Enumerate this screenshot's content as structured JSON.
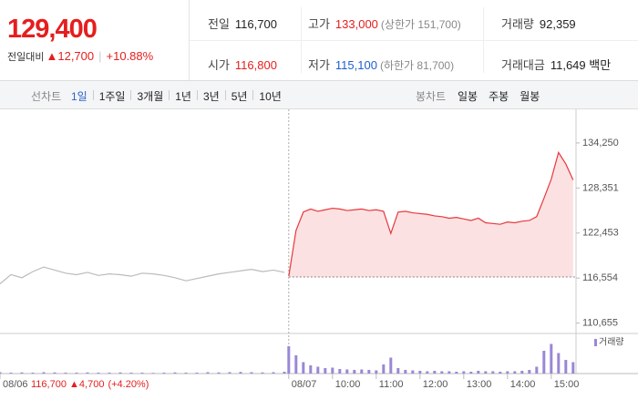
{
  "header": {
    "price": "129,400",
    "change_label": "전일대비",
    "change": "12,700",
    "change_pct": "+10.88%"
  },
  "stats": [
    {
      "label": "전일",
      "value": "116,700"
    },
    {
      "label": "고가",
      "value": "133,000",
      "note": "(상한가 151,700)"
    },
    {
      "label": "거래량",
      "value": "92,359"
    },
    {
      "label": "시가",
      "value": "116,800"
    },
    {
      "label": "저가",
      "value": "115,100",
      "note": "(하한가 81,700)"
    },
    {
      "label": "거래대금",
      "value": "11,649",
      "unit": "백만"
    }
  ],
  "tabs": {
    "line_label": "선차트",
    "line": [
      "1일",
      "1주일",
      "3개월",
      "1년",
      "3년",
      "5년",
      "10년"
    ],
    "active": 0,
    "candle_label": "봉차트",
    "candle": [
      "일봉",
      "주봉",
      "월봉"
    ]
  },
  "chart_data": {
    "type": "line",
    "xlim": [
      0,
      790
    ],
    "xticks": [
      {
        "value": 0,
        "label": "08/06"
      },
      {
        "value": 396,
        "label": "08/07"
      },
      {
        "value": 456,
        "label": "10:00"
      },
      {
        "value": 516,
        "label": "11:00"
      },
      {
        "value": 576,
        "label": "12:00"
      },
      {
        "value": 636,
        "label": "13:00"
      },
      {
        "value": 696,
        "label": "14:00"
      },
      {
        "value": 756,
        "label": "15:00"
      }
    ],
    "ylim": [
      109300,
      137700
    ],
    "yticks": [
      {
        "value": 110655,
        "label": "110,655"
      },
      {
        "value": 116554,
        "label": "116,554"
      },
      {
        "value": 122453,
        "label": "122,453"
      },
      {
        "value": 128351,
        "label": "128,351"
      },
      {
        "value": 134250,
        "label": "134,250"
      }
    ],
    "grid": false,
    "baseline": 116700,
    "series": [
      {
        "color": "#bbbbbb",
        "area": false,
        "x": [
          0,
          15,
          30,
          45,
          60,
          75,
          90,
          105,
          120,
          135,
          150,
          165,
          180,
          195,
          210,
          225,
          240,
          255,
          270,
          285,
          300,
          315,
          330,
          345,
          360,
          375,
          390
        ],
        "values": [
          115800,
          117000,
          116600,
          117400,
          118000,
          117600,
          117200,
          117000,
          117300,
          116900,
          117100,
          117000,
          116800,
          117200,
          117100,
          116900,
          116600,
          116200,
          116500,
          116800,
          117100,
          117300,
          117500,
          117700,
          117400,
          117600,
          117300
        ]
      },
      {
        "color": "#e8383d",
        "area": true,
        "x": [
          396,
          406,
          416,
          426,
          436,
          446,
          456,
          466,
          476,
          486,
          496,
          506,
          516,
          526,
          536,
          546,
          556,
          566,
          576,
          586,
          596,
          606,
          616,
          626,
          636,
          646,
          656,
          666,
          676,
          686,
          696,
          706,
          716,
          726,
          736,
          746,
          756,
          766,
          776,
          786
        ],
        "values": [
          116800,
          122800,
          125200,
          125600,
          125300,
          125500,
          125700,
          125600,
          125400,
          125500,
          125600,
          125400,
          125500,
          125300,
          122400,
          125200,
          125300,
          125100,
          125000,
          124900,
          124700,
          124600,
          124400,
          124500,
          124300,
          124100,
          124400,
          123800,
          123700,
          123600,
          123900,
          123800,
          124000,
          124100,
          124600,
          127000,
          129500,
          133000,
          131500,
          129400
        ]
      }
    ],
    "volume": {
      "label": "거래량",
      "color": "#9b87d6",
      "ylim": [
        0,
        8000
      ],
      "series": [
        {
          "x": [
            0,
            15,
            30,
            45,
            60,
            75,
            90,
            105,
            120,
            135,
            150,
            165,
            180,
            195,
            210,
            225,
            240,
            255,
            270,
            285,
            300,
            315,
            330,
            345,
            360,
            375,
            390
          ],
          "values": [
            300,
            200,
            250,
            200,
            300,
            250,
            200,
            200,
            250,
            200,
            200,
            250,
            200,
            200,
            150,
            200,
            250,
            200,
            200,
            300,
            250,
            300,
            350,
            300,
            250,
            300,
            400
          ]
        },
        {
          "x": [
            396,
            406,
            416,
            426,
            436,
            446,
            456,
            466,
            476,
            486,
            496,
            506,
            516,
            526,
            536,
            546,
            556,
            566,
            576,
            586,
            596,
            606,
            616,
            626,
            636,
            646,
            656,
            666,
            676,
            686,
            696,
            706,
            716,
            726,
            736,
            746,
            756,
            766,
            776,
            786
          ],
          "values": [
            6000,
            4000,
            2500,
            1800,
            1500,
            1200,
            1300,
            1000,
            900,
            800,
            900,
            800,
            700,
            2000,
            3500,
            1200,
            800,
            700,
            600,
            500,
            600,
            500,
            500,
            400,
            500,
            400,
            600,
            500,
            500,
            400,
            500,
            500,
            600,
            800,
            1500,
            5000,
            6500,
            4500,
            3000,
            2500
          ]
        }
      ]
    },
    "prev_day_info": {
      "price": "116,700",
      "change": "4,700",
      "pct": "(+4.20%)"
    }
  }
}
